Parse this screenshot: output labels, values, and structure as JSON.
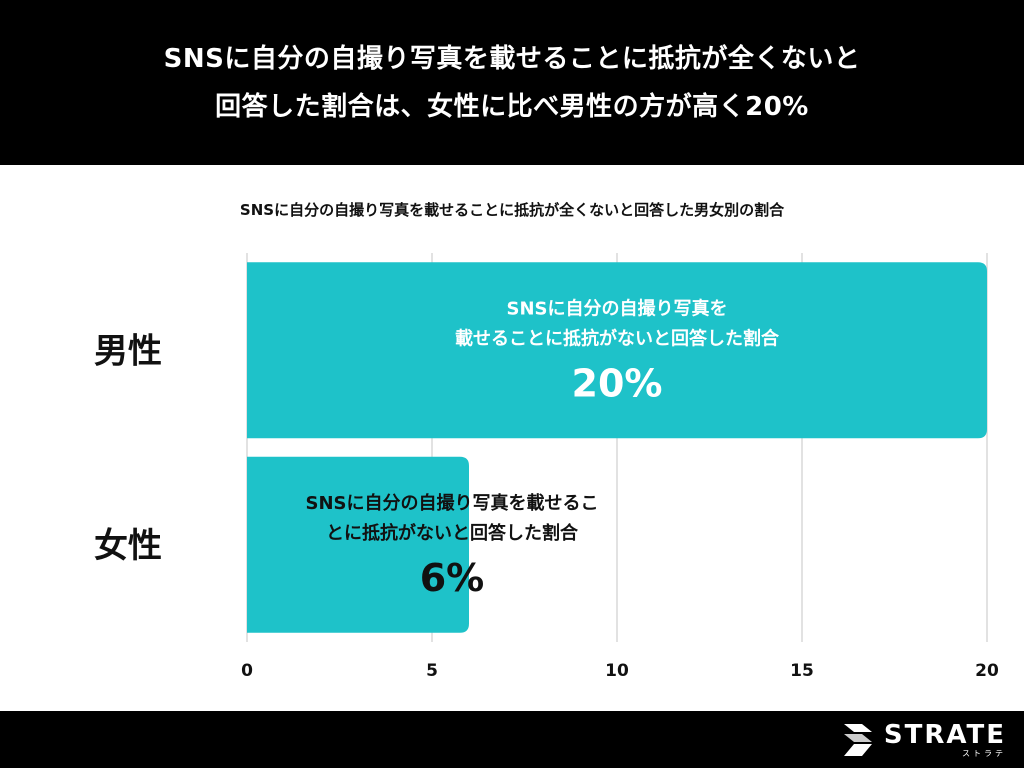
{
  "header": {
    "title_line1": "SNSに自分の自撮り写真を載せることに抵抗が全くないと",
    "title_line2": "回答した割合は、女性に比べ男性の方が高く20%"
  },
  "footer": {
    "logo_text": "STRATE",
    "logo_sub": "ストラテ"
  },
  "chart_data": {
    "type": "bar",
    "orientation": "horizontal",
    "title": "SNSに自分の自撮り写真を載せることに抵抗が全くないと回答した男女別の割合",
    "categories": [
      "男性",
      "女性"
    ],
    "values": [
      20,
      6
    ],
    "bar_labels": [
      [
        "SNSに自分の自撮り写真を",
        "載せることに抵抗がないと回答した割合",
        "20%"
      ],
      [
        "SNSに自分の自撮り写真を載せるこ",
        "とに抵抗がないと回答した割合",
        "6%"
      ]
    ],
    "xlim": [
      0,
      20
    ],
    "xticks": [
      "0",
      "5",
      "10",
      "15",
      "20"
    ],
    "grid": true,
    "bar_color": "#1ec2c9"
  }
}
